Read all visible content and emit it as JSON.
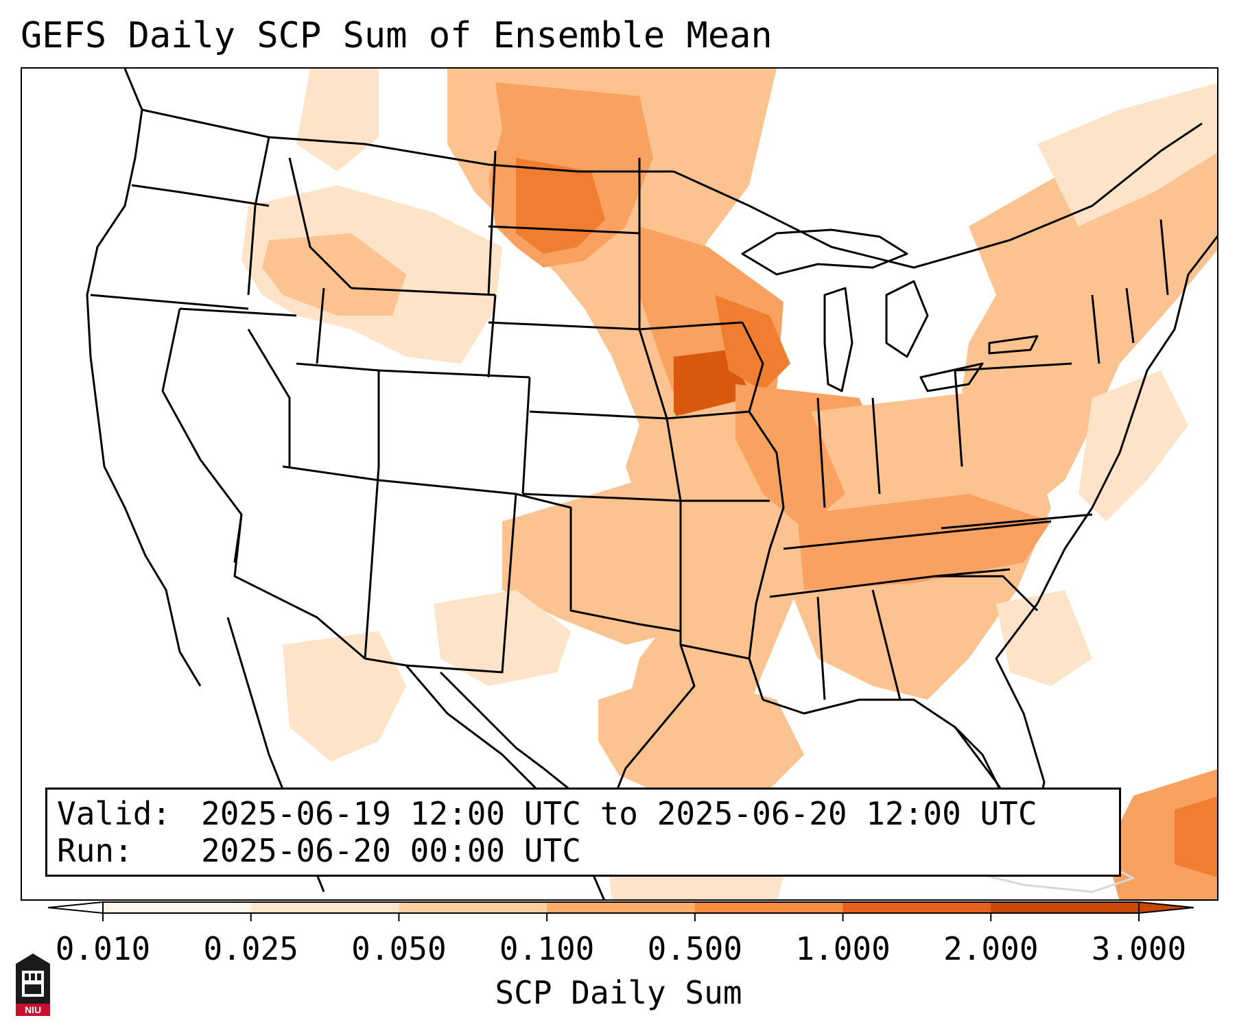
{
  "title": "GEFS Daily SCP Sum of Ensemble Mean",
  "valid_box": {
    "valid_key": "Valid:",
    "valid_value": "2025-06-19 12:00 UTC to 2025-06-20 12:00 UTC",
    "run_key": "Run:",
    "run_value": "2025-06-20 00:00 UTC"
  },
  "colorbar": {
    "label": "SCP Daily Sum",
    "ticks": [
      "0.010",
      "0.025",
      "0.050",
      "0.100",
      "0.500",
      "1.000",
      "2.000",
      "3.000"
    ],
    "colors": [
      "#fff5eb",
      "#fee6ce",
      "#fdd0a2",
      "#fdae6b",
      "#f98d3f",
      "#e8621c",
      "#c84a06"
    ],
    "extend": "both"
  },
  "logo": {
    "text": "NIU",
    "icon": "niu-logo-icon"
  },
  "map": {
    "region": "Continental United States",
    "field_colors": {
      "light": "#fde3c8",
      "low": "#fcc28f",
      "mid": "#f9a160",
      "high": "#f07e31",
      "peak": "#d8590e"
    }
  }
}
